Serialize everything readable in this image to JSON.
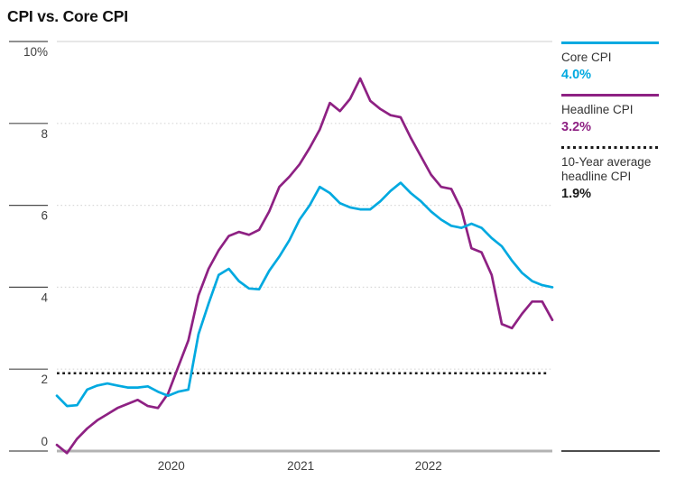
{
  "page": {
    "title": "CPI vs. Core CPI"
  },
  "legend": {
    "position": "right",
    "items": [
      {
        "label": "Core CPI",
        "value": "4.0%",
        "color": "#00a9e0",
        "line_style": "solid"
      },
      {
        "label": "Headline CPI",
        "value": "3.2%",
        "color": "#8e2183",
        "line_style": "solid"
      },
      {
        "label": "10-Year average headline CPI",
        "value": "1.9%",
        "color": "#1a1a1a",
        "line_style": "dotted"
      }
    ]
  },
  "chart_data": {
    "type": "line",
    "title": "CPI vs. Core CPI",
    "xlabel": "",
    "ylabel": "",
    "ylim": [
      0,
      10
    ],
    "grid": "horizontal-dotted",
    "legend_position": "right",
    "y_ticks": [
      {
        "value": 0,
        "label": "0"
      },
      {
        "value": 2,
        "label": "2"
      },
      {
        "value": 4,
        "label": "4"
      },
      {
        "value": 6,
        "label": "6"
      },
      {
        "value": 8,
        "label": "8"
      },
      {
        "value": 10,
        "label": "10%"
      }
    ],
    "x_tick_labels": [
      {
        "label": "2020",
        "pos": 0.231
      },
      {
        "label": "2021",
        "pos": 0.492
      },
      {
        "label": "2022",
        "pos": 0.75
      }
    ],
    "x_unit": "months, monthly year-over-year % change",
    "series": [
      {
        "name": "Core CPI",
        "color": "#00a9e0",
        "style": "solid",
        "latest_label": "4.0%",
        "values": [
          1.35,
          1.1,
          1.12,
          1.5,
          1.6,
          1.65,
          1.6,
          1.55,
          1.55,
          1.58,
          1.45,
          1.35,
          1.45,
          1.5,
          2.85,
          3.6,
          4.3,
          4.45,
          4.15,
          3.97,
          3.95,
          4.4,
          4.75,
          5.15,
          5.65,
          6.0,
          6.45,
          6.3,
          6.05,
          5.95,
          5.9,
          5.9,
          6.1,
          6.35,
          6.55,
          6.3,
          6.1,
          5.85,
          5.65,
          5.5,
          5.45,
          5.55,
          5.45,
          5.2,
          5.0,
          4.65,
          4.35,
          4.15,
          4.05,
          4.0
        ]
      },
      {
        "name": "Headline CPI",
        "color": "#8e2183",
        "style": "solid",
        "latest_label": "3.2%",
        "values": [
          0.15,
          -0.05,
          0.3,
          0.55,
          0.75,
          0.9,
          1.05,
          1.15,
          1.25,
          1.1,
          1.05,
          1.4,
          2.05,
          2.7,
          3.8,
          4.45,
          4.9,
          5.25,
          5.35,
          5.28,
          5.4,
          5.85,
          6.45,
          6.7,
          7.0,
          7.4,
          7.85,
          8.5,
          8.3,
          8.6,
          9.1,
          8.55,
          8.35,
          8.2,
          8.15,
          7.65,
          7.2,
          6.75,
          6.45,
          6.4,
          5.9,
          4.95,
          4.85,
          4.3,
          3.1,
          3.0,
          3.35,
          3.65,
          3.65,
          3.2
        ]
      },
      {
        "name": "10-Year average headline CPI",
        "color": "#1a1a1a",
        "style": "dotted",
        "latest_label": "1.9%",
        "constant": 1.9
      }
    ]
  }
}
